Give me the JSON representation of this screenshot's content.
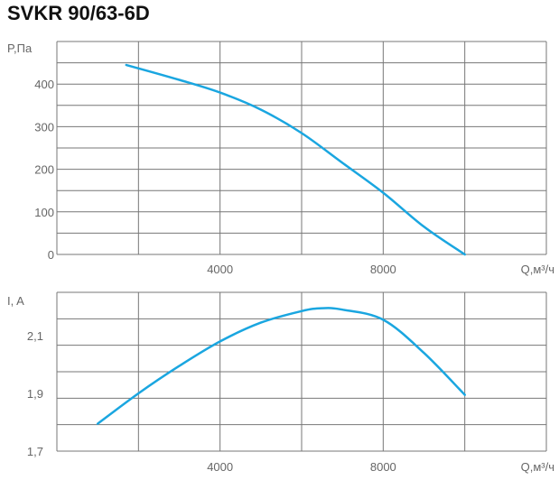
{
  "title": "SVKR 90/63-6D",
  "colors": {
    "curve": "#1aa6e0",
    "grid": "#777777",
    "text": "#666666"
  },
  "chart_data": [
    {
      "type": "line",
      "ylabel": "P,Па",
      "xlabel": "Q,м³/ч",
      "xlim": [
        0,
        12000
      ],
      "ylim": [
        0,
        500
      ],
      "x_ticks": [
        4000,
        8000
      ],
      "x_tick_labels": [
        "4000",
        "8000"
      ],
      "y_ticks": [
        0,
        100,
        200,
        300,
        400
      ],
      "y_tick_labels": [
        "0",
        "100",
        "200",
        "300",
        "400"
      ],
      "grid": true,
      "series": [
        {
          "x": [
            1700,
            3000,
            4000,
            5000,
            6000,
            7000,
            8000,
            9000,
            10000
          ],
          "y": [
            445,
            410,
            380,
            340,
            285,
            215,
            145,
            65,
            0
          ]
        }
      ]
    },
    {
      "type": "line",
      "ylabel": "I, A",
      "xlabel": "Q,м³/ч",
      "xlim": [
        0,
        12000
      ],
      "ylim": [
        1.7,
        2.25
      ],
      "x_ticks": [
        4000,
        8000
      ],
      "x_tick_labels": [
        "4000",
        "8000"
      ],
      "y_ticks": [
        1.7,
        1.9,
        2.1
      ],
      "y_tick_labels": [
        "1,7",
        "1,9",
        "2,1"
      ],
      "grid": true,
      "series": [
        {
          "x": [
            1000,
            2000,
            3000,
            4000,
            5000,
            6000,
            6500,
            7000,
            8000,
            9000,
            10000
          ],
          "y": [
            1.795,
            1.9,
            1.995,
            2.08,
            2.145,
            2.185,
            2.195,
            2.19,
            2.155,
            2.04,
            1.895
          ]
        }
      ]
    }
  ]
}
